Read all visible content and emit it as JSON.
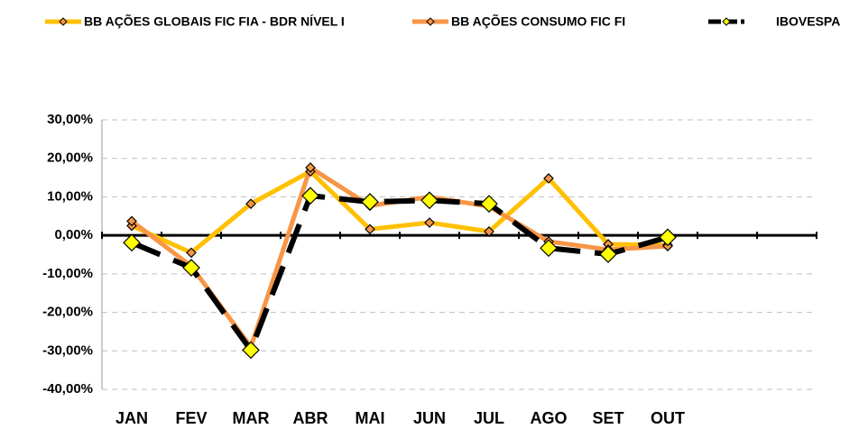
{
  "chart_data": {
    "type": "line",
    "categories": [
      "JAN",
      "FEV",
      "MAR",
      "ABR",
      "MAI",
      "JUN",
      "JUL",
      "AGO",
      "SET",
      "OUT",
      null,
      null
    ],
    "series": [
      {
        "name": "BB AÇÕES GLOBAIS FIC FIA - BDR NÍVEL I",
        "color": "#FFC000",
        "marker_color": "#F79646",
        "line_style": "solid",
        "values": [
          2.5,
          -4.5,
          8.2,
          16.6,
          1.6,
          3.3,
          1.0,
          14.8,
          -2.3,
          -2.5,
          null,
          null
        ]
      },
      {
        "name": "BB AÇÕES CONSUMO FIC FI",
        "color": "#F79646",
        "marker_color": "#F79646",
        "line_style": "solid",
        "values": [
          3.7,
          -8.0,
          -29.0,
          17.6,
          7.7,
          10.0,
          7.5,
          -1.6,
          -3.7,
          -2.8,
          null,
          null
        ]
      },
      {
        "name": "IBOVESPA",
        "color": "#000000",
        "marker_color": "#FFFF00",
        "line_style": "dash",
        "values": [
          -1.9,
          -8.4,
          -29.8,
          10.3,
          8.7,
          9.1,
          8.2,
          -3.3,
          -4.9,
          -0.5,
          null,
          null
        ]
      }
    ],
    "ylim": [
      -40,
      30
    ],
    "yticks": [
      {
        "value": -40,
        "label": "-40,00%"
      },
      {
        "value": -30,
        "label": "-30,00%"
      },
      {
        "value": -20,
        "label": "-20,00%"
      },
      {
        "value": -10,
        "label": "-10,00%"
      },
      {
        "value": 0,
        "label": "0,00%"
      },
      {
        "value": 10,
        "label": "10,00%"
      },
      {
        "value": 20,
        "label": "20,00%"
      },
      {
        "value": 30,
        "label": "30,00%"
      }
    ],
    "grid": true,
    "legend": "top"
  }
}
